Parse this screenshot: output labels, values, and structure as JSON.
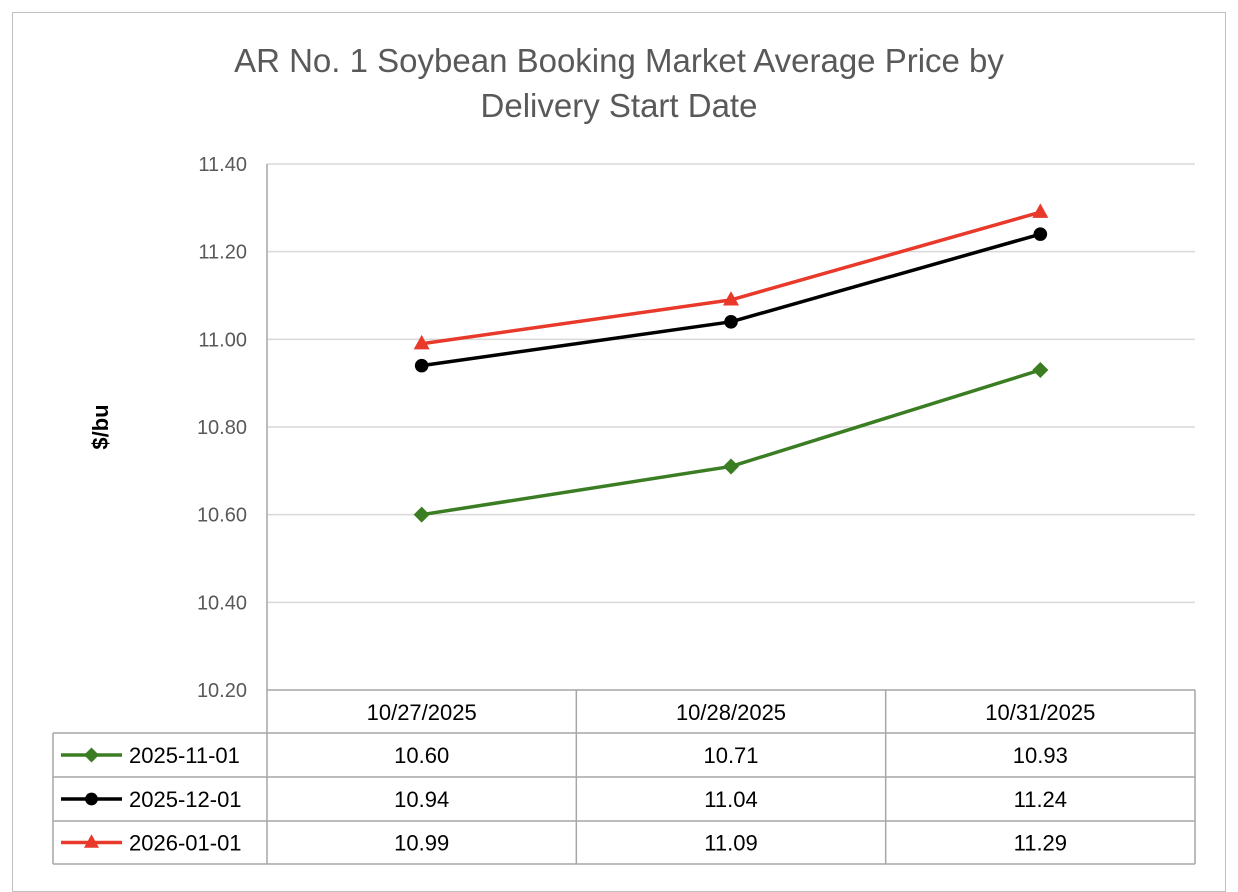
{
  "chart_data": {
    "type": "line",
    "title": "AR No. 1 Soybean Booking Market Average Price by Delivery Start Date",
    "title_lines": [
      "AR No. 1 Soybean Booking Market Average Price by",
      "Delivery Start Date"
    ],
    "xlabel": "",
    "ylabel": "$/bu",
    "ylim": [
      10.2,
      11.4
    ],
    "yticks": [
      "10.20",
      "10.40",
      "10.60",
      "10.80",
      "11.00",
      "11.20",
      "11.40"
    ],
    "grid": true,
    "legend": "data-table",
    "categories": [
      "10/27/2025",
      "10/28/2025",
      "10/31/2025"
    ],
    "series": [
      {
        "name": "2025-11-01",
        "values": [
          10.6,
          10.71,
          10.93
        ],
        "labels": [
          "10.60",
          "10.71",
          "10.93"
        ],
        "color": "#3b7d23",
        "marker": "diamond"
      },
      {
        "name": "2025-12-01",
        "values": [
          10.94,
          11.04,
          11.24
        ],
        "labels": [
          "10.94",
          "11.04",
          "11.24"
        ],
        "color": "#000000",
        "marker": "circle"
      },
      {
        "name": "2026-01-01",
        "values": [
          10.99,
          11.09,
          11.29
        ],
        "labels": [
          "10.99",
          "11.09",
          "11.29"
        ],
        "color": "#e8392b",
        "marker": "triangle"
      }
    ]
  }
}
